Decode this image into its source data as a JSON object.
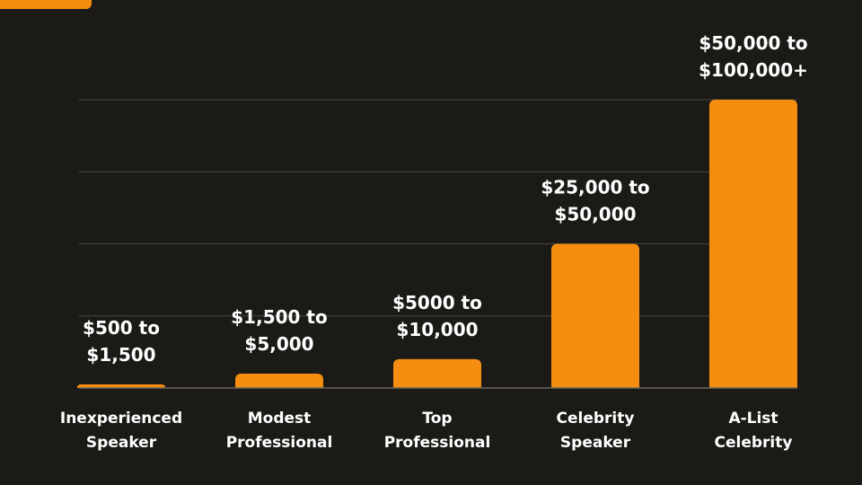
{
  "chart_data": {
    "type": "bar",
    "categories": [
      [
        "Inexperienced",
        "Speaker"
      ],
      [
        "Modest",
        "Professional"
      ],
      [
        "Top",
        "Professional"
      ],
      [
        "Celebrity",
        "Speaker"
      ],
      [
        "A-List",
        "Celebrity"
      ]
    ],
    "values": [
      5,
      20,
      40,
      200,
      400
    ],
    "value_labels": [
      [
        "$500 to",
        "$1,500"
      ],
      [
        "$1,500 to",
        "$5,000"
      ],
      [
        "$5000 to",
        "$10,000"
      ],
      [
        "$25,000 to",
        "$50,000"
      ],
      [
        "$50,000 to",
        "$100,000+"
      ]
    ],
    "ylim": [
      0,
      400
    ],
    "grid": true,
    "title": "",
    "xlabel": "",
    "ylabel": ""
  },
  "colors": {
    "background": "#1c1a16",
    "bar": "#f58e10",
    "text": "#ffffff",
    "grid": "#4a4741",
    "accent_tab": "#f58e10"
  }
}
